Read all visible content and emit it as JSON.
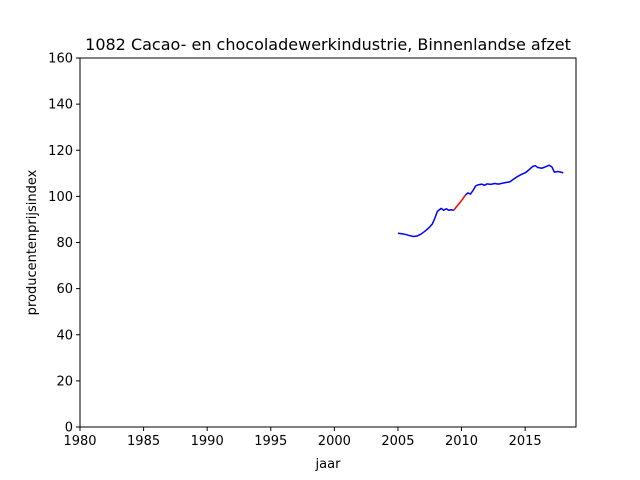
{
  "chart_data": {
    "type": "line",
    "title": "1082 Cacao- en chocoladewerkindustrie, Binnenlandse afzet",
    "xlabel": "jaar",
    "ylabel": "producentenprijsindex",
    "xlim": [
      1980,
      2019
    ],
    "ylim": [
      0,
      160
    ],
    "xticks": [
      1980,
      1985,
      1990,
      1995,
      2000,
      2005,
      2010,
      2015
    ],
    "yticks": [
      0,
      20,
      40,
      60,
      80,
      100,
      120,
      140,
      160
    ],
    "grid": false,
    "series": [
      {
        "color": "#0000ff",
        "segments": [
          [
            [
              2005.0,
              84.0
            ],
            [
              2005.3,
              83.8
            ],
            [
              2005.6,
              83.5
            ],
            [
              2005.9,
              83.0
            ],
            [
              2006.2,
              82.6
            ],
            [
              2006.5,
              82.8
            ],
            [
              2006.8,
              83.6
            ],
            [
              2007.1,
              84.8
            ],
            [
              2007.4,
              86.2
            ],
            [
              2007.7,
              88.0
            ],
            [
              2007.9,
              90.5
            ],
            [
              2008.1,
              93.5
            ],
            [
              2008.4,
              94.8
            ],
            [
              2008.6,
              94.0
            ],
            [
              2008.8,
              94.6
            ],
            [
              2009.0,
              94.0
            ],
            [
              2009.2,
              94.2
            ],
            [
              2009.4,
              94.0
            ]
          ],
          [
            [
              2010.3,
              100.5
            ],
            [
              2010.5,
              101.5
            ],
            [
              2010.7,
              101.0
            ],
            [
              2010.9,
              102.5
            ],
            [
              2011.1,
              104.5
            ],
            [
              2011.3,
              105.0
            ],
            [
              2011.6,
              105.3
            ],
            [
              2011.8,
              104.8
            ],
            [
              2012.0,
              105.4
            ],
            [
              2012.3,
              105.2
            ],
            [
              2012.6,
              105.6
            ],
            [
              2012.9,
              105.3
            ],
            [
              2013.2,
              105.7
            ],
            [
              2013.5,
              106.0
            ],
            [
              2013.8,
              106.3
            ],
            [
              2014.1,
              107.5
            ],
            [
              2014.4,
              108.6
            ],
            [
              2014.7,
              109.5
            ],
            [
              2015.0,
              110.2
            ],
            [
              2015.3,
              111.5
            ],
            [
              2015.6,
              113.0
            ],
            [
              2015.8,
              113.3
            ],
            [
              2016.0,
              112.5
            ],
            [
              2016.3,
              112.2
            ],
            [
              2016.6,
              112.8
            ],
            [
              2016.9,
              113.5
            ],
            [
              2017.1,
              112.8
            ],
            [
              2017.3,
              110.5
            ],
            [
              2017.6,
              110.8
            ],
            [
              2017.8,
              110.5
            ],
            [
              2018.0,
              110.2
            ]
          ]
        ]
      },
      {
        "color": "#ff0000",
        "segments": [
          [
            [
              2009.4,
              94.0
            ],
            [
              2009.6,
              95.5
            ],
            [
              2009.8,
              96.8
            ],
            [
              2010.0,
              98.2
            ],
            [
              2010.3,
              100.5
            ]
          ]
        ]
      }
    ]
  }
}
